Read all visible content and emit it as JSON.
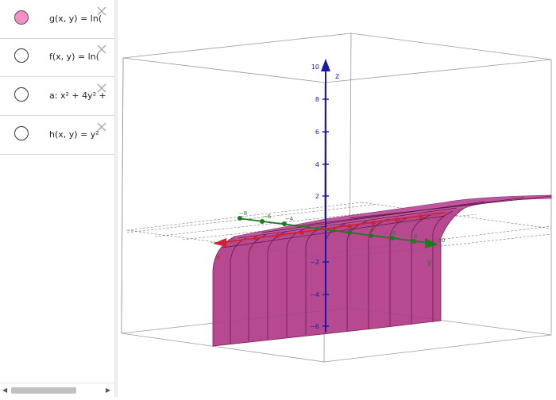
{
  "algebra": {
    "items": [
      {
        "label": "g(x, y) = ln(",
        "visible": true
      },
      {
        "label": "f(x, y) = ln(",
        "visible": false
      },
      {
        "label": "a: x² + 4y² +",
        "visible": false
      },
      {
        "label": "h(x, y) = y²",
        "visible": false
      }
    ]
  },
  "view3d": {
    "z_axis_label": "z",
    "y_axis_label": "y",
    "x_axis_label": "x",
    "z_ticks": [
      "10",
      "8",
      "6",
      "4",
      "2",
      "−2",
      "−4",
      "−6"
    ],
    "y_ticks": [
      "−8",
      "−6",
      "−4",
      "4",
      "6",
      "8",
      "10"
    ],
    "x_ticks": [
      "2",
      "4"
    ],
    "colors": {
      "surface": "#b03a85",
      "surface_dark": "#7a2060",
      "z_axis": "#1a1aa6",
      "y_axis": "#1f7a1f",
      "x_axis": "#cc2233",
      "box": "#999999"
    }
  }
}
